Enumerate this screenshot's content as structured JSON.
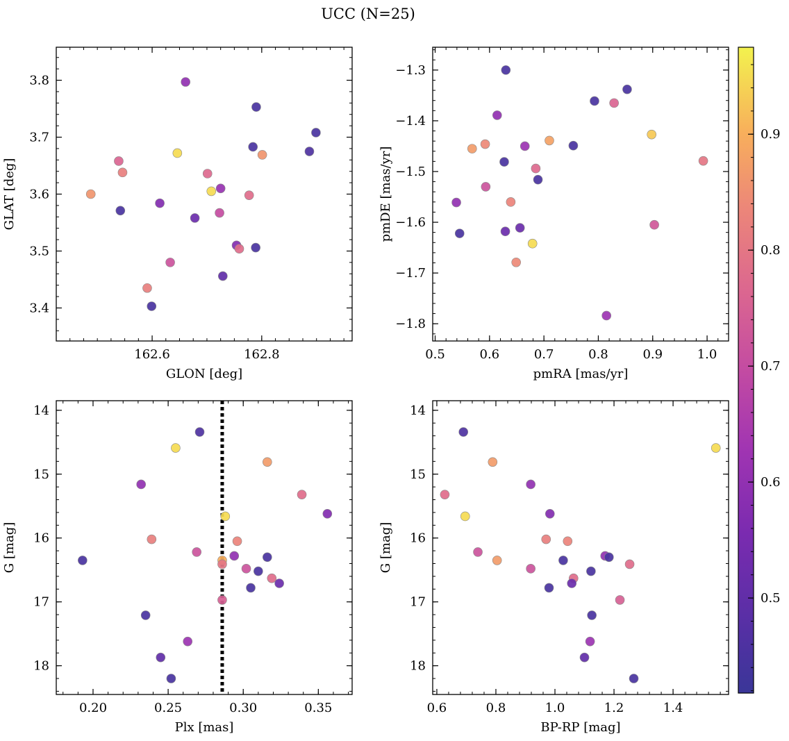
{
  "figure": {
    "title": "UCC (N=25)"
  },
  "chart_data": [
    {
      "id": "glon_glat",
      "type": "scatter",
      "xlabel": "GLON [deg]",
      "ylabel": "GLAT [deg]",
      "xlim": [
        162.425,
        162.965
      ],
      "ylim": [
        3.342,
        3.858
      ],
      "invert_y": false,
      "xticks": [
        162.6,
        162.8
      ],
      "xtick_labels": [
        "162.6",
        "162.8"
      ],
      "xminor": 0.025,
      "yticks": [
        3.4,
        3.5,
        3.6,
        3.7,
        3.8
      ],
      "ytick_labels": [
        "3.4",
        "3.5",
        "3.6",
        "3.7",
        "3.8"
      ],
      "yminor": 0.02,
      "points": [
        {
          "x": 162.661,
          "y": 3.797,
          "c": 0.6
        },
        {
          "x": 162.79,
          "y": 3.753,
          "c": 0.45
        },
        {
          "x": 162.899,
          "y": 3.708,
          "c": 0.45
        },
        {
          "x": 162.784,
          "y": 3.683,
          "c": 0.45
        },
        {
          "x": 162.887,
          "y": 3.675,
          "c": 0.46
        },
        {
          "x": 162.646,
          "y": 3.672,
          "c": 0.95
        },
        {
          "x": 162.801,
          "y": 3.669,
          "c": 0.86
        },
        {
          "x": 162.539,
          "y": 3.658,
          "c": 0.76
        },
        {
          "x": 162.546,
          "y": 3.638,
          "c": 0.82
        },
        {
          "x": 162.701,
          "y": 3.636,
          "c": 0.77
        },
        {
          "x": 162.725,
          "y": 3.61,
          "c": 0.61
        },
        {
          "x": 162.708,
          "y": 3.605,
          "c": 0.95
        },
        {
          "x": 162.488,
          "y": 3.6,
          "c": 0.86
        },
        {
          "x": 162.777,
          "y": 3.598,
          "c": 0.78
        },
        {
          "x": 162.614,
          "y": 3.584,
          "c": 0.57
        },
        {
          "x": 162.542,
          "y": 3.571,
          "c": 0.45
        },
        {
          "x": 162.723,
          "y": 3.567,
          "c": 0.7
        },
        {
          "x": 162.678,
          "y": 3.558,
          "c": 0.52
        },
        {
          "x": 162.754,
          "y": 3.51,
          "c": 0.57
        },
        {
          "x": 162.789,
          "y": 3.506,
          "c": 0.45
        },
        {
          "x": 162.759,
          "y": 3.504,
          "c": 0.78
        },
        {
          "x": 162.633,
          "y": 3.48,
          "c": 0.72
        },
        {
          "x": 162.729,
          "y": 3.456,
          "c": 0.5
        },
        {
          "x": 162.591,
          "y": 3.435,
          "c": 0.82
        },
        {
          "x": 162.599,
          "y": 3.403,
          "c": 0.45
        }
      ]
    },
    {
      "id": "pm",
      "type": "scatter",
      "xlabel": "pmRA [mas/yr]",
      "ylabel": "pmDE [mas/yr]",
      "xlim": [
        0.4955,
        1.0395
      ],
      "ylim": [
        -1.834,
        -1.255
      ],
      "invert_y": false,
      "xticks": [
        0.5,
        0.6,
        0.7,
        0.8,
        0.9,
        1.0
      ],
      "xtick_labels": [
        "0.5",
        "0.6",
        "0.7",
        "0.8",
        "0.9",
        "1.0"
      ],
      "xminor": 0.02,
      "yticks": [
        -1.8,
        -1.7,
        -1.6,
        -1.5,
        -1.4,
        -1.3
      ],
      "ytick_labels": [
        "−1.8",
        "−1.7",
        "−1.6",
        "−1.5",
        "−1.4",
        "−1.3"
      ],
      "yminor": 0.02,
      "points": [
        {
          "x": 0.63,
          "y": -1.3,
          "c": 0.45
        },
        {
          "x": 0.853,
          "y": -1.338,
          "c": 0.45
        },
        {
          "x": 0.793,
          "y": -1.361,
          "c": 0.45
        },
        {
          "x": 0.829,
          "y": -1.365,
          "c": 0.76
        },
        {
          "x": 0.614,
          "y": -1.389,
          "c": 0.6
        },
        {
          "x": 0.898,
          "y": -1.427,
          "c": 0.93
        },
        {
          "x": 0.71,
          "y": -1.439,
          "c": 0.88
        },
        {
          "x": 0.665,
          "y": -1.45,
          "c": 0.62
        },
        {
          "x": 0.754,
          "y": -1.449,
          "c": 0.45
        },
        {
          "x": 0.592,
          "y": -1.446,
          "c": 0.84
        },
        {
          "x": 0.568,
          "y": -1.455,
          "c": 0.87
        },
        {
          "x": 0.993,
          "y": -1.479,
          "c": 0.8
        },
        {
          "x": 0.627,
          "y": -1.481,
          "c": 0.45
        },
        {
          "x": 0.685,
          "y": -1.494,
          "c": 0.77
        },
        {
          "x": 0.689,
          "y": -1.516,
          "c": 0.45
        },
        {
          "x": 0.593,
          "y": -1.53,
          "c": 0.72
        },
        {
          "x": 0.639,
          "y": -1.56,
          "c": 0.83
        },
        {
          "x": 0.539,
          "y": -1.561,
          "c": 0.6
        },
        {
          "x": 0.903,
          "y": -1.605,
          "c": 0.73
        },
        {
          "x": 0.656,
          "y": -1.611,
          "c": 0.52
        },
        {
          "x": 0.629,
          "y": -1.618,
          "c": 0.52
        },
        {
          "x": 0.545,
          "y": -1.622,
          "c": 0.45
        },
        {
          "x": 0.679,
          "y": -1.642,
          "c": 0.95
        },
        {
          "x": 0.649,
          "y": -1.679,
          "c": 0.84
        },
        {
          "x": 0.815,
          "y": -1.784,
          "c": 0.62
        }
      ]
    },
    {
      "id": "plx_g",
      "type": "scatter",
      "xlabel": "Plx [mas]",
      "ylabel": "G [mag]",
      "xlim": [
        0.1755,
        0.3725
      ],
      "ylim": [
        13.85,
        18.45
      ],
      "invert_y": true,
      "vline": 0.286,
      "xticks": [
        0.2,
        0.25,
        0.3,
        0.35
      ],
      "xtick_labels": [
        "0.20",
        "0.25",
        "0.30",
        "0.35"
      ],
      "xminor": 0.01,
      "yticks": [
        14,
        15,
        16,
        17,
        18
      ],
      "ytick_labels": [
        "14",
        "15",
        "16",
        "17",
        "18"
      ],
      "yminor": 0.2,
      "points": [
        {
          "x": 0.271,
          "y": 14.34,
          "c": 0.46
        },
        {
          "x": 0.255,
          "y": 14.59,
          "c": 0.95
        },
        {
          "x": 0.316,
          "y": 14.81,
          "c": 0.87
        },
        {
          "x": 0.232,
          "y": 15.16,
          "c": 0.6
        },
        {
          "x": 0.339,
          "y": 15.32,
          "c": 0.78
        },
        {
          "x": 0.356,
          "y": 15.62,
          "c": 0.57
        },
        {
          "x": 0.288,
          "y": 15.66,
          "c": 0.95
        },
        {
          "x": 0.239,
          "y": 16.02,
          "c": 0.82
        },
        {
          "x": 0.296,
          "y": 16.05,
          "c": 0.83
        },
        {
          "x": 0.269,
          "y": 16.22,
          "c": 0.72
        },
        {
          "x": 0.294,
          "y": 16.28,
          "c": 0.6
        },
        {
          "x": 0.316,
          "y": 16.3,
          "c": 0.45
        },
        {
          "x": 0.193,
          "y": 16.35,
          "c": 0.45
        },
        {
          "x": 0.286,
          "y": 16.35,
          "c": 0.9
        },
        {
          "x": 0.286,
          "y": 16.41,
          "c": 0.8
        },
        {
          "x": 0.302,
          "y": 16.48,
          "c": 0.72
        },
        {
          "x": 0.31,
          "y": 16.52,
          "c": 0.45
        },
        {
          "x": 0.319,
          "y": 16.63,
          "c": 0.78
        },
        {
          "x": 0.324,
          "y": 16.71,
          "c": 0.52
        },
        {
          "x": 0.305,
          "y": 16.78,
          "c": 0.45
        },
        {
          "x": 0.286,
          "y": 16.97,
          "c": 0.75
        },
        {
          "x": 0.235,
          "y": 17.21,
          "c": 0.45
        },
        {
          "x": 0.263,
          "y": 17.62,
          "c": 0.62
        },
        {
          "x": 0.245,
          "y": 17.87,
          "c": 0.5
        },
        {
          "x": 0.252,
          "y": 18.2,
          "c": 0.45
        }
      ]
    },
    {
      "id": "cmd",
      "type": "scatter",
      "xlabel": "BP-RP [mag]",
      "ylabel": "G [mag]",
      "xlim": [
        0.586,
        1.588
      ],
      "ylim": [
        13.85,
        18.45
      ],
      "invert_y": true,
      "xticks": [
        0.6,
        0.8,
        1.0,
        1.2,
        1.4
      ],
      "xtick_labels": [
        "0.6",
        "0.8",
        "1.0",
        "1.2",
        "1.4"
      ],
      "xminor": 0.04,
      "yticks": [
        14,
        15,
        16,
        17,
        18
      ],
      "ytick_labels": [
        "14",
        "15",
        "16",
        "17",
        "18"
      ],
      "yminor": 0.2,
      "points": [
        {
          "x": 0.69,
          "y": 14.34,
          "c": 0.46
        },
        {
          "x": 1.545,
          "y": 14.59,
          "c": 0.95
        },
        {
          "x": 0.789,
          "y": 14.81,
          "c": 0.87
        },
        {
          "x": 0.918,
          "y": 15.16,
          "c": 0.6
        },
        {
          "x": 0.627,
          "y": 15.32,
          "c": 0.78
        },
        {
          "x": 0.983,
          "y": 15.62,
          "c": 0.57
        },
        {
          "x": 0.696,
          "y": 15.66,
          "c": 0.95
        },
        {
          "x": 0.97,
          "y": 16.02,
          "c": 0.82
        },
        {
          "x": 1.043,
          "y": 16.05,
          "c": 0.83
        },
        {
          "x": 0.739,
          "y": 16.22,
          "c": 0.72
        },
        {
          "x": 1.17,
          "y": 16.28,
          "c": 0.6
        },
        {
          "x": 1.183,
          "y": 16.3,
          "c": 0.45
        },
        {
          "x": 1.028,
          "y": 16.35,
          "c": 0.45
        },
        {
          "x": 0.804,
          "y": 16.35,
          "c": 0.87
        },
        {
          "x": 1.253,
          "y": 16.41,
          "c": 0.78
        },
        {
          "x": 0.918,
          "y": 16.48,
          "c": 0.72
        },
        {
          "x": 1.122,
          "y": 16.52,
          "c": 0.45
        },
        {
          "x": 1.063,
          "y": 16.63,
          "c": 0.78
        },
        {
          "x": 1.057,
          "y": 16.71,
          "c": 0.52
        },
        {
          "x": 0.98,
          "y": 16.78,
          "c": 0.45
        },
        {
          "x": 1.22,
          "y": 16.97,
          "c": 0.75
        },
        {
          "x": 1.125,
          "y": 17.21,
          "c": 0.45
        },
        {
          "x": 1.119,
          "y": 17.62,
          "c": 0.62
        },
        {
          "x": 1.1,
          "y": 17.87,
          "c": 0.5
        },
        {
          "x": 1.267,
          "y": 18.2,
          "c": 0.45
        }
      ]
    }
  ],
  "colorbar": {
    "cmap": "plasma",
    "range": [
      0.418,
      0.975
    ],
    "ticks": [
      0.5,
      0.6,
      0.7,
      0.8,
      0.9
    ],
    "tick_labels": [
      "0.5",
      "0.6",
      "0.7",
      "0.8",
      "0.9"
    ],
    "minor": 0.02
  },
  "colors": {
    "marker_edge": "#888888",
    "vline": "#000000"
  }
}
